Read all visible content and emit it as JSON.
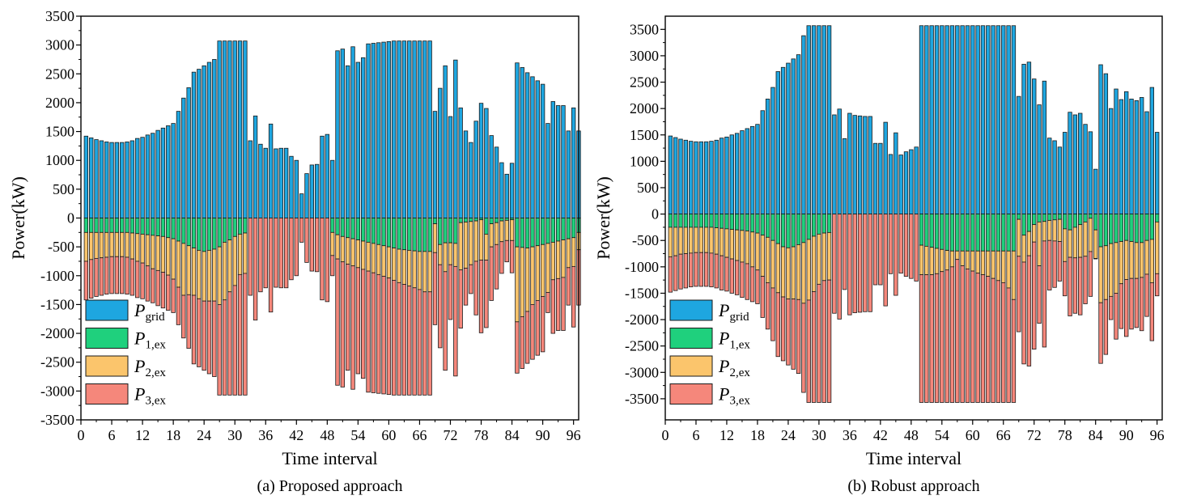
{
  "colors": {
    "grid": "#1ea6e0",
    "p1": "#1fd07d",
    "p2": "#fbc56c",
    "p3": "#f5877b",
    "edge": "#1a1a1a"
  },
  "chart_data": [
    {
      "type": "bar",
      "subtitle": "(a) Proposed approach",
      "xlabel": "Time interval",
      "ylabel": "Power(kW)",
      "xlim": [
        0,
        97
      ],
      "ylim": [
        -3500,
        3500
      ],
      "yticks": [
        -3500,
        -3000,
        -2500,
        -2000,
        -1500,
        -1000,
        -500,
        0,
        500,
        1000,
        1500,
        2000,
        2500,
        3000,
        3500
      ],
      "xticks": [
        0,
        6,
        12,
        18,
        24,
        30,
        36,
        42,
        48,
        54,
        60,
        66,
        72,
        78,
        84,
        90,
        96
      ],
      "legend": [
        {
          "main": "P",
          "sub": "grid",
          "key": "grid"
        },
        {
          "main": "P",
          "sub": "1,ex",
          "key": "p1"
        },
        {
          "main": "P",
          "sub": "2,ex",
          "key": "p2"
        },
        {
          "main": "P",
          "sub": "3,ex",
          "key": "p3"
        }
      ],
      "legend_position": "bottom-left",
      "series": [
        {
          "name": "Pgrid",
          "key": "grid",
          "values": [
            1420,
            1390,
            1360,
            1340,
            1320,
            1310,
            1310,
            1310,
            1320,
            1340,
            1380,
            1400,
            1440,
            1470,
            1520,
            1560,
            1600,
            1640,
            1850,
            2080,
            2260,
            2530,
            2580,
            2640,
            2700,
            2750,
            3070,
            3070,
            3070,
            3070,
            3070,
            3070,
            1340,
            1770,
            1280,
            1210,
            1630,
            1200,
            1210,
            1210,
            1070,
            1000,
            420,
            770,
            920,
            930,
            1420,
            1450,
            1000,
            2900,
            2930,
            2640,
            2970,
            2700,
            2780,
            3020,
            3030,
            3040,
            3050,
            3060,
            3070,
            3070,
            3070,
            3070,
            3070,
            3070,
            3070,
            3070,
            1850,
            2250,
            2640,
            1760,
            2740,
            1910,
            1510,
            1310,
            1680,
            1990,
            1900,
            1430,
            1230,
            960,
            760,
            950,
            2690,
            2610,
            2520,
            2450,
            2380,
            2320,
            1640,
            2020,
            1950,
            1950,
            1510,
            1910,
            1510
          ]
        },
        {
          "name": "P1,ex",
          "key": "p1",
          "values": [
            -250,
            -250,
            -250,
            -250,
            -250,
            -250,
            -250,
            -250,
            -250,
            -260,
            -270,
            -280,
            -290,
            -300,
            -310,
            -320,
            -340,
            -360,
            -400,
            -440,
            -480,
            -520,
            -560,
            -580,
            -560,
            -540,
            -500,
            -420,
            -380,
            -320,
            -280,
            -260,
            0,
            0,
            0,
            0,
            0,
            0,
            0,
            0,
            0,
            0,
            0,
            0,
            0,
            0,
            0,
            0,
            -250,
            -290,
            -320,
            -340,
            -360,
            -380,
            -400,
            -420,
            -440,
            -460,
            -480,
            -500,
            -520,
            -540,
            -550,
            -560,
            -570,
            -580,
            -580,
            -580,
            -100,
            -460,
            -430,
            -430,
            -440,
            -80,
            -70,
            -60,
            -50,
            -30,
            -280,
            -100,
            -80,
            -50,
            -40,
            -30,
            -500,
            -510,
            -520,
            -500,
            -480,
            -460,
            -440,
            -420,
            -400,
            -380,
            -360,
            -340,
            -250
          ]
        },
        {
          "name": "P2,ex",
          "key": "p2",
          "values": [
            -500,
            -470,
            -450,
            -440,
            -430,
            -420,
            -420,
            -420,
            -430,
            -450,
            -480,
            -500,
            -540,
            -580,
            -600,
            -620,
            -650,
            -700,
            -800,
            -900,
            -850,
            -820,
            -840,
            -860,
            -880,
            -900,
            -1000,
            -1000,
            -900,
            -850,
            -700,
            -700,
            0,
            0,
            0,
            0,
            0,
            0,
            0,
            0,
            0,
            0,
            0,
            0,
            0,
            0,
            0,
            0,
            -400,
            -420,
            -440,
            -460,
            -470,
            -480,
            -490,
            -500,
            -510,
            -520,
            -530,
            -540,
            -560,
            -580,
            -600,
            -620,
            -640,
            -660,
            -700,
            -700,
            -500,
            -350,
            -500,
            -380,
            -400,
            -820,
            -800,
            -750,
            -700,
            -700,
            -450,
            -400,
            -380,
            -360,
            -350,
            -360,
            -1300,
            -1200,
            -1100,
            -1000,
            -950,
            -900,
            -850,
            -650,
            -650,
            -650,
            -500,
            -500,
            -300
          ]
        },
        {
          "name": "P3,ex",
          "key": "p3",
          "values": [
            -670,
            -670,
            -660,
            -650,
            -640,
            -640,
            -640,
            -640,
            -640,
            -630,
            -630,
            -620,
            -610,
            -590,
            -610,
            -620,
            -610,
            -580,
            -650,
            -740,
            -930,
            -1190,
            -1180,
            -1200,
            -1260,
            -1310,
            -1570,
            -1650,
            -1790,
            -1900,
            -2090,
            -2110,
            -1340,
            -1770,
            -1280,
            -1210,
            -1630,
            -1200,
            -1210,
            -1210,
            -1070,
            -1000,
            -420,
            -770,
            -920,
            -930,
            -1420,
            -1450,
            -350,
            -2190,
            -2170,
            -1840,
            -2140,
            -1840,
            -1890,
            -2100,
            -2080,
            -2060,
            -2040,
            -2020,
            -1990,
            -1950,
            -1920,
            -1890,
            -1860,
            -1830,
            -1790,
            -1790,
            -1250,
            -1440,
            -1710,
            -950,
            -1900,
            -1010,
            -640,
            -500,
            -930,
            -1260,
            -1170,
            -930,
            -770,
            -550,
            -370,
            -560,
            -890,
            -900,
            -900,
            -950,
            -950,
            -960,
            -350,
            -930,
            -900,
            -920,
            -650,
            -1050,
            -960
          ]
        }
      ]
    },
    {
      "type": "bar",
      "subtitle": "(b) Robust approach",
      "xlabel": "Time interval",
      "ylabel": "Power(kW)",
      "xlim": [
        0,
        97
      ],
      "ylim": [
        -3900,
        3750
      ],
      "yticks": [
        -3500,
        -3000,
        -2500,
        -2000,
        -1500,
        -1000,
        -500,
        0,
        500,
        1000,
        1500,
        2000,
        2500,
        3000,
        3500
      ],
      "xticks": [
        0,
        6,
        12,
        18,
        24,
        30,
        36,
        42,
        48,
        54,
        60,
        66,
        72,
        78,
        84,
        90,
        96
      ],
      "legend": [
        {
          "main": "P",
          "sub": "grid",
          "key": "grid"
        },
        {
          "main": "P",
          "sub": "1,ex",
          "key": "p1"
        },
        {
          "main": "P",
          "sub": "2,ex",
          "key": "p2"
        },
        {
          "main": "P",
          "sub": "3,ex",
          "key": "p3"
        }
      ],
      "legend_position": "bottom-left",
      "series": [
        {
          "name": "Pgrid",
          "key": "grid",
          "values": [
            1480,
            1450,
            1420,
            1400,
            1380,
            1370,
            1370,
            1370,
            1380,
            1400,
            1440,
            1460,
            1500,
            1530,
            1580,
            1620,
            1660,
            1700,
            1960,
            2180,
            2400,
            2700,
            2780,
            2860,
            2940,
            3020,
            3380,
            3570,
            3570,
            3570,
            3570,
            3570,
            1880,
            1990,
            1430,
            1910,
            1870,
            1860,
            1850,
            1850,
            1340,
            1340,
            1740,
            1130,
            1540,
            1120,
            1180,
            1220,
            1270,
            3570,
            3570,
            3570,
            3570,
            3570,
            3570,
            3570,
            3570,
            3570,
            3570,
            3570,
            3570,
            3570,
            3570,
            3570,
            3570,
            3570,
            3570,
            3570,
            2230,
            2840,
            2880,
            2560,
            2070,
            2520,
            1440,
            1390,
            1270,
            1550,
            1930,
            1880,
            1910,
            1700,
            1560,
            850,
            2830,
            2660,
            2000,
            2370,
            2170,
            2320,
            2180,
            2150,
            2210,
            1940,
            2400,
            1550
          ]
        },
        {
          "name": "P1,ex",
          "key": "p1",
          "values": [
            -250,
            -250,
            -250,
            -250,
            -250,
            -250,
            -250,
            -250,
            -250,
            -260,
            -270,
            -280,
            -290,
            -300,
            -310,
            -320,
            -340,
            -360,
            -400,
            -440,
            -500,
            -560,
            -620,
            -640,
            -620,
            -580,
            -540,
            -480,
            -420,
            -380,
            -360,
            -350,
            0,
            0,
            0,
            0,
            0,
            0,
            0,
            0,
            0,
            0,
            0,
            0,
            0,
            0,
            0,
            0,
            0,
            -590,
            -610,
            -630,
            -650,
            -670,
            -690,
            -700,
            -700,
            -700,
            -700,
            -700,
            -700,
            -700,
            -700,
            -700,
            -700,
            -700,
            -700,
            -700,
            -100,
            -400,
            -330,
            -200,
            -150,
            -140,
            -120,
            -110,
            -100,
            -280,
            -300,
            -250,
            -200,
            -150,
            -80,
            -300,
            -620,
            -600,
            -560,
            -540,
            -520,
            -500,
            -520,
            -540,
            -540,
            -500,
            -480,
            -150
          ]
        },
        {
          "name": "P2,ex",
          "key": "p2",
          "values": [
            -560,
            -540,
            -510,
            -500,
            -490,
            -480,
            -480,
            -480,
            -490,
            -500,
            -520,
            -540,
            -560,
            -580,
            -600,
            -620,
            -660,
            -700,
            -780,
            -860,
            -900,
            -930,
            -950,
            -970,
            -990,
            -1040,
            -1150,
            -1150,
            -1050,
            -950,
            -900,
            -900,
            0,
            0,
            0,
            0,
            0,
            0,
            0,
            0,
            0,
            0,
            0,
            0,
            0,
            0,
            0,
            0,
            0,
            -560,
            -540,
            -520,
            -480,
            -420,
            -370,
            -300,
            -160,
            -280,
            -340,
            -380,
            -420,
            -450,
            -480,
            -520,
            -560,
            -600,
            -700,
            -920,
            -700,
            -510,
            -460,
            -330,
            -830,
            -370,
            -380,
            -400,
            -420,
            -620,
            -520,
            -580,
            -620,
            -650,
            -630,
            -540,
            -1060,
            -1020,
            -1000,
            -960,
            -800,
            -740,
            -700,
            -680,
            -660,
            -640,
            -820,
            -980
          ]
        },
        {
          "name": "P3,ex",
          "key": "p3",
          "values": [
            -670,
            -660,
            -660,
            -650,
            -640,
            -640,
            -640,
            -640,
            -640,
            -640,
            -650,
            -640,
            -650,
            -650,
            -670,
            -680,
            -660,
            -640,
            -780,
            -880,
            -1000,
            -1210,
            -1210,
            -1250,
            -1330,
            -1400,
            -1690,
            -1940,
            -2100,
            -2240,
            -2310,
            -2320,
            -1880,
            -1990,
            -1430,
            -1910,
            -1870,
            -1860,
            -1850,
            -1850,
            -1340,
            -1340,
            -1740,
            -1130,
            -1540,
            -1120,
            -1180,
            -1220,
            -1270,
            -2420,
            -2420,
            -2420,
            -2440,
            -2480,
            -2510,
            -2570,
            -2710,
            -2590,
            -2530,
            -2490,
            -2450,
            -2420,
            -2390,
            -2350,
            -2310,
            -2270,
            -2170,
            -1950,
            -1430,
            -1930,
            -2090,
            -2030,
            -1090,
            -2010,
            -940,
            -880,
            -750,
            -650,
            -1110,
            -1050,
            -1090,
            -900,
            -850,
            -10,
            -1150,
            -1040,
            -440,
            -870,
            -850,
            -1080,
            -960,
            -930,
            -1010,
            -800,
            -1100,
            -420
          ]
        }
      ]
    }
  ]
}
